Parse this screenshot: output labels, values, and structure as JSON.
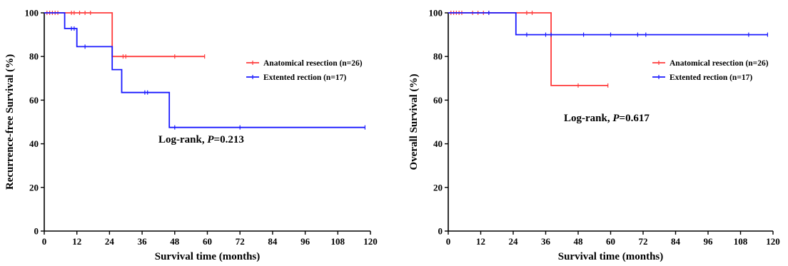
{
  "colors": {
    "red": "#ff3b3b",
    "blue": "#1a1aff",
    "axis": "#000000"
  },
  "chart_data": [
    {
      "type": "line",
      "subtype": "kaplan-meier step",
      "xlabel": "Survival time (months)",
      "ylabel": "Recurrence-free Survival (%)",
      "xlim": [
        0,
        120
      ],
      "ylim": [
        0,
        100
      ],
      "xticks": [
        0,
        12,
        24,
        36,
        48,
        60,
        72,
        84,
        96,
        108,
        120
      ],
      "yticks": [
        0,
        20,
        40,
        60,
        80,
        100
      ],
      "grid": false,
      "legend_position": "right-middle",
      "annotation": {
        "prefix": "Log-rank, ",
        "p_symbol": "P",
        "suffix": "=0.213"
      },
      "series": [
        {
          "name": "Anatomical resection (n=26)",
          "color": "red",
          "steps": [
            [
              0,
              100
            ],
            [
              25,
              100
            ],
            [
              25,
              80
            ],
            [
              59,
              80
            ]
          ],
          "censored": [
            [
              1,
              100
            ],
            [
              2,
              100
            ],
            [
              3,
              100
            ],
            [
              4,
              100
            ],
            [
              5,
              100
            ],
            [
              10,
              100
            ],
            [
              11,
              100
            ],
            [
              13,
              100
            ],
            [
              15,
              100
            ],
            [
              17,
              100
            ],
            [
              25,
              80
            ],
            [
              29,
              80
            ],
            [
              30,
              80
            ],
            [
              48,
              80
            ],
            [
              59,
              80
            ]
          ]
        },
        {
          "name": "Extented rection (n=17)",
          "color": "blue",
          "steps": [
            [
              0,
              100
            ],
            [
              7.5,
              100
            ],
            [
              7.5,
              92.8
            ],
            [
              12,
              92.8
            ],
            [
              12,
              84.5
            ],
            [
              25,
              84.5
            ],
            [
              25,
              74
            ],
            [
              28.5,
              74
            ],
            [
              28.5,
              63.5
            ],
            [
              46,
              63.5
            ],
            [
              46,
              47.5
            ],
            [
              118,
              47.5
            ]
          ],
          "censored": [
            [
              10,
              92.8
            ],
            [
              11,
              92.8
            ],
            [
              15,
              84.5
            ],
            [
              37,
              63.5
            ],
            [
              38,
              63.5
            ],
            [
              48,
              47.5
            ],
            [
              72,
              47.5
            ],
            [
              118,
              47.5
            ]
          ]
        }
      ]
    },
    {
      "type": "line",
      "subtype": "kaplan-meier step",
      "xlabel": "Survival time (months)",
      "ylabel": "Overall Survival (%)",
      "xlim": [
        0,
        120
      ],
      "ylim": [
        0,
        100
      ],
      "xticks": [
        0,
        12,
        24,
        36,
        48,
        60,
        72,
        84,
        96,
        108,
        120
      ],
      "yticks": [
        0,
        20,
        40,
        60,
        80,
        100
      ],
      "grid": false,
      "legend_position": "right-middle",
      "annotation": {
        "prefix": "Log-rank, ",
        "p_symbol": "P",
        "suffix": "=0.617"
      },
      "series": [
        {
          "name": "Anatomical resection (n=26)",
          "color": "red",
          "steps": [
            [
              0,
              100
            ],
            [
              38,
              100
            ],
            [
              38,
              66.7
            ],
            [
              59,
              66.7
            ]
          ],
          "censored": [
            [
              1,
              100
            ],
            [
              2,
              100
            ],
            [
              3,
              100
            ],
            [
              4,
              100
            ],
            [
              5,
              100
            ],
            [
              9,
              100
            ],
            [
              11,
              100
            ],
            [
              13,
              100
            ],
            [
              15,
              100
            ],
            [
              29,
              100
            ],
            [
              31,
              100
            ],
            [
              48,
              66.7
            ],
            [
              59,
              66.7
            ]
          ]
        },
        {
          "name": "Extented rection (n=17)",
          "color": "blue",
          "steps": [
            [
              0,
              100
            ],
            [
              25,
              100
            ],
            [
              25,
              90
            ],
            [
              118,
              90
            ]
          ],
          "censored": [
            [
              15,
              100
            ],
            [
              29,
              90
            ],
            [
              36,
              90
            ],
            [
              38,
              90
            ],
            [
              50,
              90
            ],
            [
              60,
              90
            ],
            [
              70,
              90
            ],
            [
              73,
              90
            ],
            [
              111,
              90
            ],
            [
              118,
              90
            ]
          ]
        }
      ]
    }
  ]
}
